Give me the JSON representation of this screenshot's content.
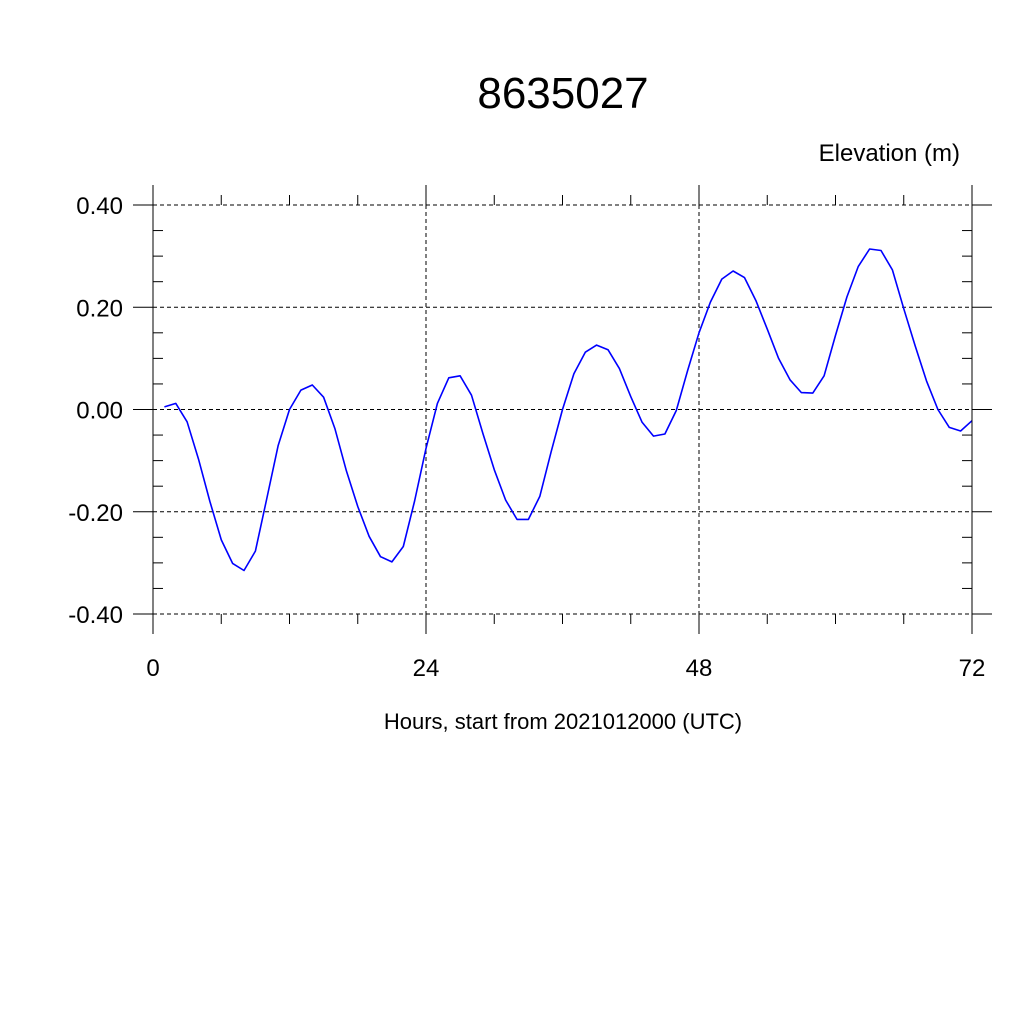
{
  "chart_data": {
    "type": "line",
    "title": "8635027",
    "ylabel": "Elevation (m)",
    "xlabel": "Hours, start from 2021012000 (UTC)",
    "xlim": [
      0,
      72
    ],
    "ylim": [
      -0.4,
      0.4
    ],
    "xticks": [
      0,
      24,
      48,
      72
    ],
    "xtick_labels": [
      "0",
      "24",
      "48",
      "72"
    ],
    "yticks": [
      0.4,
      0.2,
      0.0,
      -0.2,
      -0.4
    ],
    "ytick_labels": [
      "0.40",
      "0.20",
      "0.00",
      "-0.20",
      "-0.40"
    ],
    "grid": true,
    "series": [
      {
        "color": "#0000ff",
        "x": [
          1,
          2,
          3,
          4,
          5,
          6,
          7,
          8,
          9,
          10,
          11,
          12,
          13,
          14,
          15,
          16,
          17,
          18,
          19,
          20,
          21,
          22,
          23,
          24,
          25,
          26,
          27,
          28,
          29,
          30,
          31,
          32,
          33,
          34,
          35,
          36,
          37,
          38,
          39,
          40,
          41,
          42,
          43,
          44,
          45,
          46,
          47,
          48,
          49,
          50,
          51,
          52,
          53,
          54,
          55,
          56,
          57,
          58,
          59,
          60,
          61,
          62,
          63,
          64,
          65,
          66,
          67,
          68,
          69,
          70,
          71,
          72
        ],
        "y": [
          0.005,
          0.012,
          -0.024,
          -0.097,
          -0.18,
          -0.255,
          -0.301,
          -0.315,
          -0.277,
          -0.174,
          -0.071,
          0.0,
          0.038,
          0.048,
          0.024,
          -0.038,
          -0.12,
          -0.19,
          -0.248,
          -0.288,
          -0.298,
          -0.268,
          -0.179,
          -0.076,
          0.012,
          0.062,
          0.066,
          0.028,
          -0.047,
          -0.118,
          -0.177,
          -0.215,
          -0.215,
          -0.17,
          -0.083,
          0.0,
          0.07,
          0.112,
          0.126,
          0.117,
          0.08,
          0.025,
          -0.025,
          -0.052,
          -0.048,
          -0.002,
          0.076,
          0.15,
          0.21,
          0.255,
          0.271,
          0.258,
          0.213,
          0.157,
          0.1,
          0.058,
          0.033,
          0.032,
          0.066,
          0.145,
          0.22,
          0.28,
          0.314,
          0.311,
          0.273,
          0.197,
          0.125,
          0.056,
          0.0,
          -0.035,
          -0.042,
          -0.022
        ]
      }
    ]
  }
}
